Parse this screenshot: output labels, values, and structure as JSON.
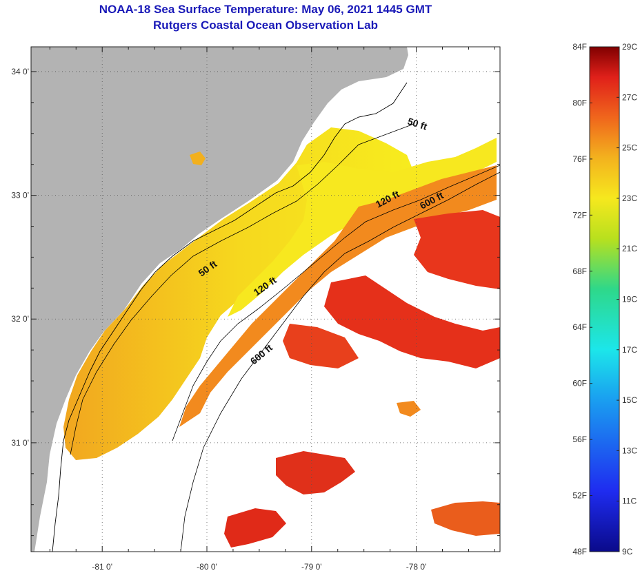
{
  "title": {
    "line1": "NOAA-18 Sea Surface Temperature:  May 06, 2021 1445 GMT",
    "line2": "Rutgers Coastal Ocean Observation Lab"
  },
  "map": {
    "lon_ticks": [
      {
        "value": -81,
        "label": "-81 0'"
      },
      {
        "value": -80,
        "label": "-80 0'"
      },
      {
        "value": -79,
        "label": "-79 0'"
      },
      {
        "value": -78,
        "label": "-78 0'"
      }
    ],
    "lat_ticks": [
      {
        "value": 34,
        "label": "34 0'"
      },
      {
        "value": 33,
        "label": "33 0'"
      },
      {
        "value": 32,
        "label": "32 0'"
      },
      {
        "value": 31,
        "label": "31 0'"
      }
    ],
    "depth_contours": [
      {
        "label": "50 ft"
      },
      {
        "label": "50 ft"
      },
      {
        "label": "120 ft"
      },
      {
        "label": "120 ft"
      },
      {
        "label": "600 ft"
      },
      {
        "label": "600 ft"
      }
    ],
    "colors": {
      "land": "#b3b3b3",
      "water_nodata": "#ffffff",
      "grid": "#444444"
    }
  },
  "colorbar": {
    "fahrenheit_labels": [
      "84F",
      "80F",
      "76F",
      "72F",
      "68F",
      "64F",
      "60F",
      "56F",
      "52F",
      "48F"
    ],
    "celsius_labels": [
      "29C",
      "27C",
      "25C",
      "23C",
      "21C",
      "19C",
      "17C",
      "15C",
      "13C",
      "11C",
      "9C"
    ],
    "range_f": [
      48,
      84
    ],
    "range_c": [
      9,
      29
    ]
  }
}
